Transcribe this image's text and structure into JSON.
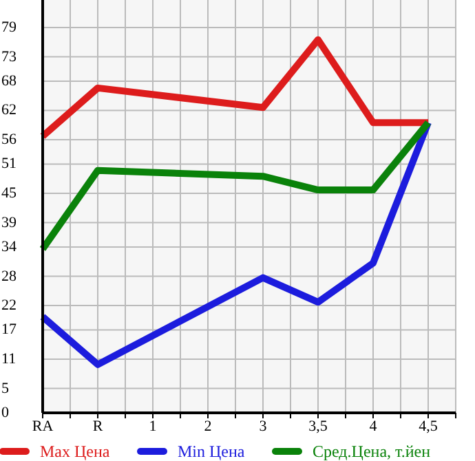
{
  "chart_data": {
    "type": "line",
    "categories": [
      "RA",
      "R",
      "1",
      "2",
      "3",
      "3,5",
      "4",
      "4,5"
    ],
    "series": [
      {
        "name": "Max Цена",
        "color": "#dd1c1c",
        "values": [
          56.7,
          66.6,
          null,
          null,
          62.6,
          76.5,
          59.5,
          59.5
        ]
      },
      {
        "name": "Min Цена",
        "color": "#1c1cdd",
        "values": [
          19.7,
          9.9,
          null,
          null,
          27.7,
          22.7,
          30.7,
          59.5
        ]
      },
      {
        "name": "Сред.Цена, т.йен",
        "color": "#0a820a",
        "values": [
          33.6,
          49.7,
          null,
          null,
          48.5,
          45.7,
          45.7,
          59.5
        ]
      }
    ],
    "ylim": [
      0,
      84.64
    ],
    "yticks": [
      0,
      5,
      11,
      17,
      22,
      28,
      34,
      39,
      45,
      51,
      56,
      62,
      68,
      73,
      79
    ],
    "grid": true,
    "legend": "bottom",
    "marker": "none",
    "line_style": "solid"
  }
}
